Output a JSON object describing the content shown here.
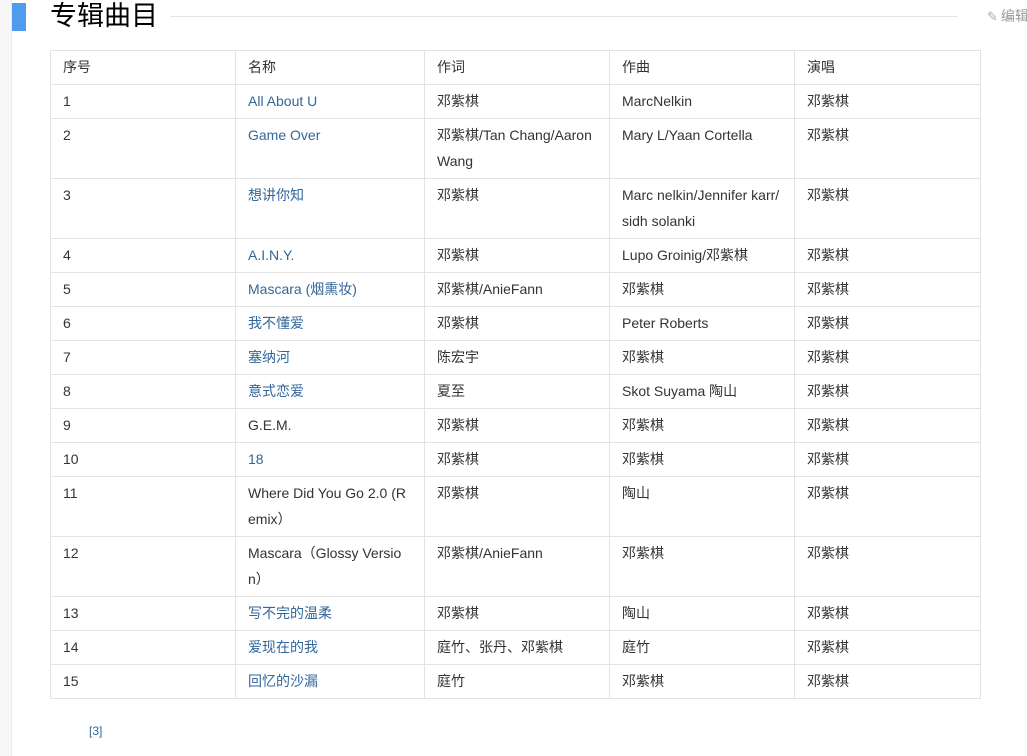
{
  "section": {
    "title": "专辑曲目",
    "edit_label": "编辑",
    "accent_color": "#4f9cee"
  },
  "table": {
    "headers": [
      "序号",
      "名称",
      "作词",
      "作曲",
      "演唱"
    ],
    "rows": [
      {
        "no": "1",
        "name": "All About U",
        "link": true,
        "lyrics": "邓紫棋",
        "music": "MarcNelkin",
        "singer": "邓紫棋"
      },
      {
        "no": "2",
        "name": "Game Over",
        "link": true,
        "lyrics": "邓紫棋/Tan Chang/Aaron Wang",
        "music": "Mary L/Yaan Cortella",
        "singer": "邓紫棋"
      },
      {
        "no": "3",
        "name": "想讲你知",
        "link": true,
        "lyrics": "邓紫棋",
        "music": "Marc nelkin/Jennifer karr/sidh solanki",
        "singer": "邓紫棋"
      },
      {
        "no": "4",
        "name": "A.I.N.Y.",
        "link": true,
        "lyrics": "邓紫棋",
        "music": "Lupo Groinig/邓紫棋",
        "singer": "邓紫棋"
      },
      {
        "no": "5",
        "name": "Mascara (烟熏妆)",
        "link": true,
        "lyrics": "邓紫棋/AnieFann",
        "music": "邓紫棋",
        "singer": "邓紫棋"
      },
      {
        "no": "6",
        "name": "我不懂爱",
        "link": true,
        "lyrics": "邓紫棋",
        "music": "Peter Roberts",
        "singer": "邓紫棋"
      },
      {
        "no": "7",
        "name": "塞纳河",
        "link": true,
        "lyrics": "陈宏宇",
        "music": "邓紫棋",
        "singer": "邓紫棋"
      },
      {
        "no": "8",
        "name": "意式恋爱",
        "link": true,
        "lyrics": "夏至",
        "music": "Skot Suyama 陶山",
        "singer": "邓紫棋"
      },
      {
        "no": "9",
        "name": "G.E.M.",
        "link": false,
        "lyrics": "邓紫棋",
        "music": "邓紫棋",
        "singer": "邓紫棋"
      },
      {
        "no": "10",
        "name": "18",
        "link": true,
        "lyrics": "邓紫棋",
        "music": "邓紫棋",
        "singer": "邓紫棋"
      },
      {
        "no": "11",
        "name": "Where Did You Go 2.0 (Remix）",
        "link": false,
        "lyrics": "邓紫棋",
        "music": "陶山",
        "singer": "邓紫棋"
      },
      {
        "no": "12",
        "name": "Mascara（Glossy Version）",
        "link": false,
        "lyrics": "邓紫棋/AnieFann",
        "music": "邓紫棋",
        "singer": "邓紫棋"
      },
      {
        "no": "13",
        "name": "写不完的温柔",
        "link": true,
        "lyrics": "邓紫棋",
        "music": "陶山",
        "singer": "邓紫棋"
      },
      {
        "no": "14",
        "name": "爱现在的我",
        "link": true,
        "lyrics": "庭竹、张丹、邓紫棋",
        "music": "庭竹",
        "singer": "邓紫棋"
      },
      {
        "no": "15",
        "name": "回忆的沙漏",
        "link": true,
        "lyrics": "庭竹",
        "music": "邓紫棋",
        "singer": "邓紫棋"
      }
    ]
  },
  "reference": "[3]"
}
